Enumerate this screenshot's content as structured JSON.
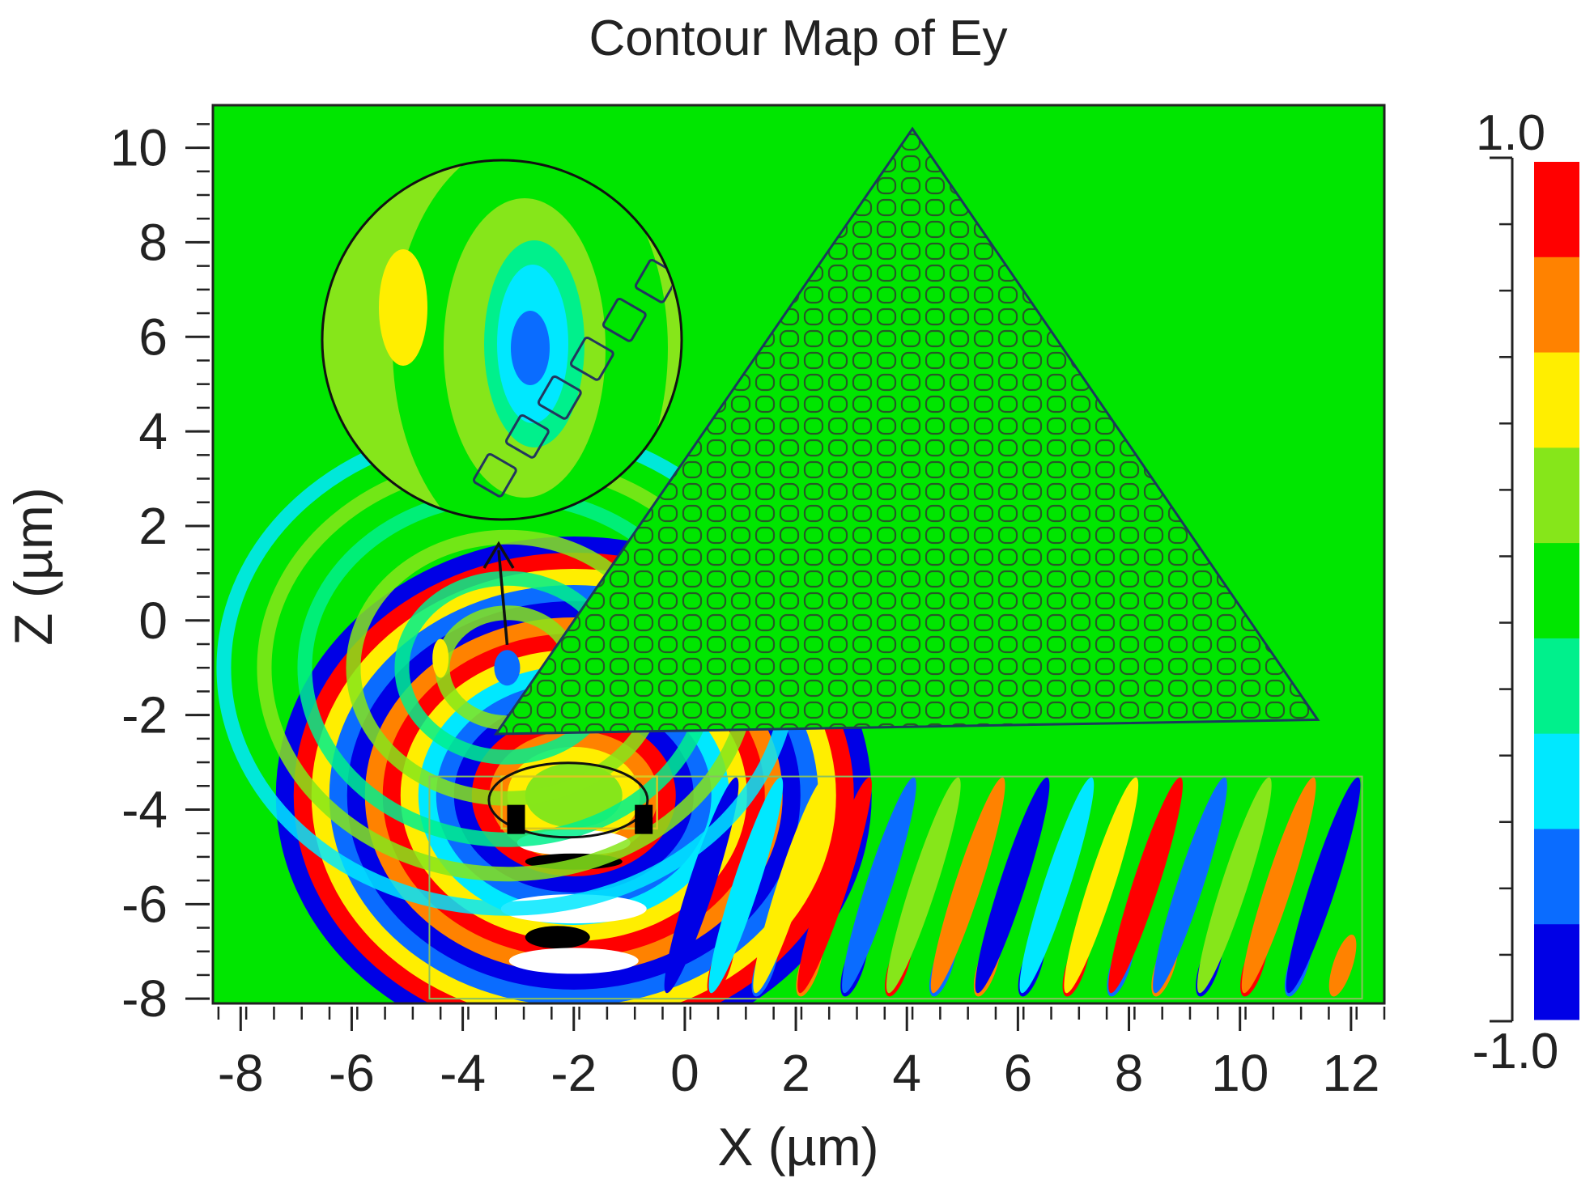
{
  "chart_data": {
    "type": "heatmap",
    "title": "Contour Map of Ey",
    "xlabel": "X (µm)",
    "ylabel": "Z (µm)",
    "xlim": [
      -8.5,
      12.6
    ],
    "ylim": [
      -8.1,
      10.9
    ],
    "x_ticks": [
      "-8",
      "-6",
      "-4",
      "-2",
      "0",
      "2",
      "4",
      "6",
      "8",
      "10",
      "12"
    ],
    "x_tick_values": [
      -8,
      -6,
      -4,
      -2,
      0,
      2,
      4,
      6,
      8,
      10,
      12
    ],
    "y_ticks": [
      "10",
      "8",
      "6",
      "4",
      "2",
      "0",
      "-2",
      "-4",
      "-6",
      "-8"
    ],
    "y_tick_values": [
      10,
      8,
      6,
      4,
      2,
      0,
      -2,
      -4,
      -6,
      -8
    ],
    "colorbar": {
      "max_label": "1.0",
      "min_label": "-1.0",
      "range": [
        -1.0,
        1.0
      ],
      "levels": [
        "#0000e6",
        "#0a6cff",
        "#00e8ff",
        "#00f08c",
        "#00e600",
        "#86e61a",
        "#ffee00",
        "#ff8200",
        "#ff0000"
      ]
    },
    "background_color": "#00e600",
    "structures": {
      "photonic_crystal_prism": {
        "vertices": [
          [
            -3.4,
            -2.4
          ],
          [
            4.1,
            10.4
          ],
          [
            11.4,
            -2.1
          ]
        ]
      },
      "source_waveguide_box": {
        "x": [
          -4.6,
          12.2
        ],
        "z": [
          -8.0,
          -3.3
        ]
      },
      "lens_box": {
        "x": [
          -3.3,
          -0.5
        ],
        "z": [
          -4.4,
          -3.3
        ]
      }
    },
    "zoom_inset": {
      "center": [
        -3.2,
        6.0
      ],
      "radius_um": 3.2,
      "points_to": [
        -3.2,
        -1.2
      ]
    }
  }
}
